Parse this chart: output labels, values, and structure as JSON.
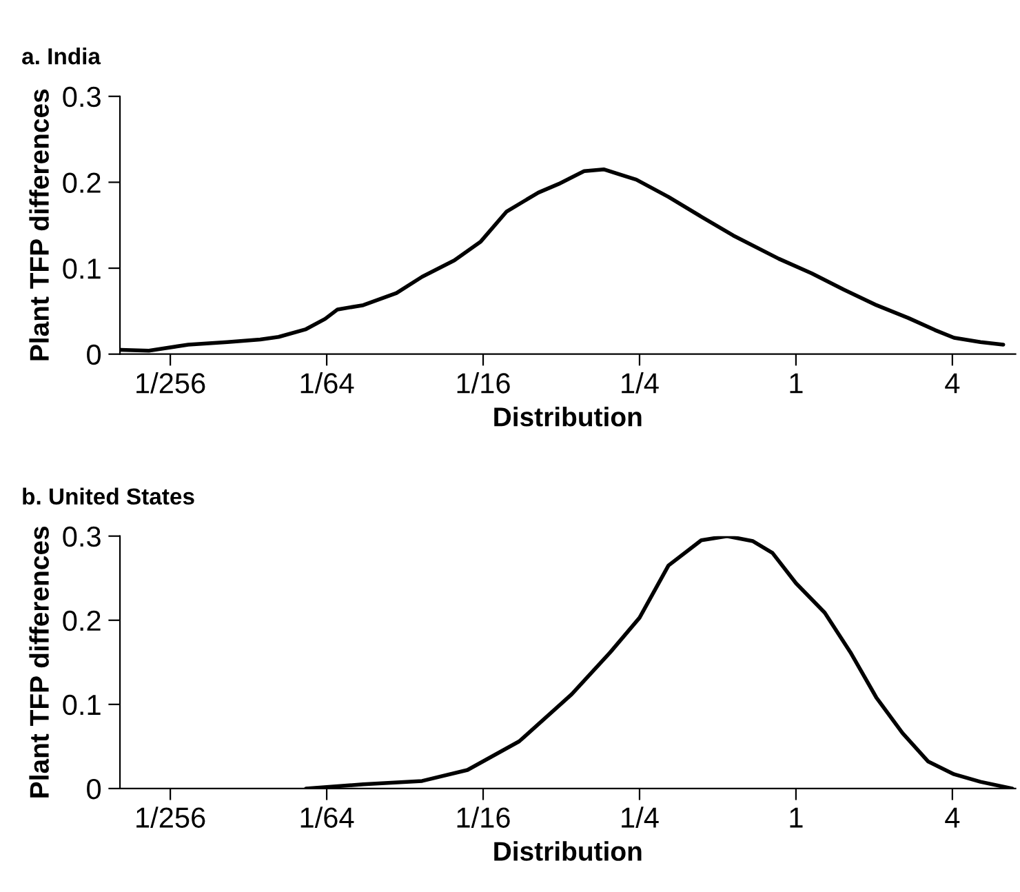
{
  "chart_data": [
    {
      "type": "line",
      "title": "a. India",
      "xlabel": "Distribution",
      "ylabel": "Plant TFP differences",
      "log": "x",
      "grid": false,
      "color": "#000000",
      "x": [
        0.00251,
        0.00323,
        0.00458,
        0.00648,
        0.00867,
        0.0102,
        0.013,
        0.0154,
        0.0172,
        0.0216,
        0.029,
        0.0364,
        0.0484,
        0.0612,
        0.077,
        0.102,
        0.122,
        0.153,
        0.182,
        0.243,
        0.323,
        0.432,
        0.574,
        0.859,
        1.149,
        1.53,
        2.04,
        2.71,
        3.43,
        4.06,
        5.13,
        6.28
      ],
      "values": [
        0.005,
        0.004,
        0.011,
        0.014,
        0.017,
        0.02,
        0.029,
        0.041,
        0.052,
        0.057,
        0.071,
        0.09,
        0.109,
        0.131,
        0.166,
        0.188,
        0.198,
        0.213,
        0.215,
        0.203,
        0.183,
        0.16,
        0.138,
        0.111,
        0.094,
        0.075,
        0.057,
        0.042,
        0.028,
        0.019,
        0.014,
        0.011
      ],
      "xlim": [
        0.0025,
        7.0
      ],
      "ylim": [
        0,
        0.3
      ],
      "xticks": [
        {
          "value": 0.00390625,
          "label": "1/256"
        },
        {
          "value": 0.015625,
          "label": "1/64"
        },
        {
          "value": 0.0625,
          "label": "1/16"
        },
        {
          "value": 0.25,
          "label": "1/4"
        },
        1,
        4
      ],
      "yticks": [
        0,
        0.1,
        0.2,
        0.3
      ]
    },
    {
      "type": "line",
      "title": "b. United States",
      "xlabel": "Distribution",
      "ylabel": "Plant TFP differences",
      "log": "x",
      "grid": false,
      "color": "#000000",
      "x": [
        0.013,
        0.0216,
        0.0364,
        0.0544,
        0.086,
        0.137,
        0.193,
        0.25,
        0.323,
        0.432,
        0.543,
        0.683,
        0.812,
        1,
        1.29,
        1.62,
        2.04,
        2.57,
        3.23,
        4.06,
        5.13,
        6.8
      ],
      "values": [
        0,
        0.005,
        0.009,
        0.022,
        0.056,
        0.112,
        0.162,
        0.203,
        0.265,
        0.295,
        0.3,
        0.294,
        0.28,
        0.244,
        0.209,
        0.162,
        0.108,
        0.066,
        0.032,
        0.017,
        0.008,
        0
      ],
      "xlim": [
        0.0025,
        7.0
      ],
      "ylim": [
        0,
        0.3
      ],
      "xticks": [
        {
          "value": 0.00390625,
          "label": "1/256"
        },
        {
          "value": 0.015625,
          "label": "1/64"
        },
        {
          "value": 0.0625,
          "label": "1/16"
        },
        {
          "value": 0.25,
          "label": "1/4"
        },
        1,
        4
      ],
      "yticks": [
        0,
        0.1,
        0.2,
        0.3
      ]
    }
  ]
}
